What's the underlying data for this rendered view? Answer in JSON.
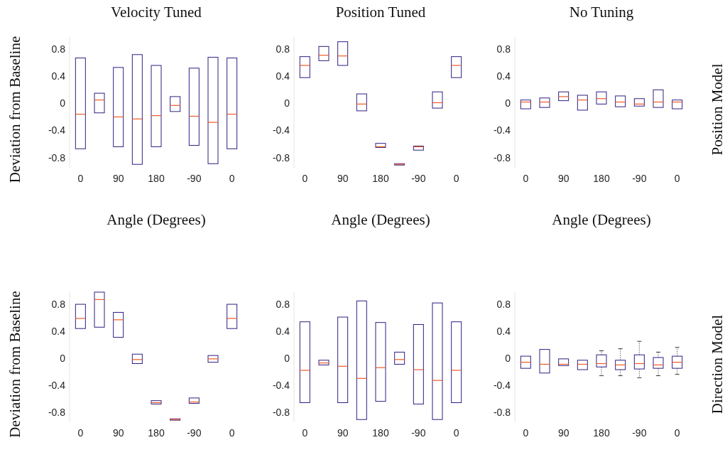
{
  "chart_data": [
    {
      "type": "box",
      "title": "Velocity Tuned",
      "xlabel": "Angle (Degrees)",
      "ylabel": "Deviation from Baseline",
      "categories": [
        "0",
        null,
        "90",
        null,
        "180",
        null,
        "-90",
        null,
        "0"
      ],
      "color": "#2e1f80",
      "ylim": [
        -0.95,
        0.98
      ],
      "yticks": [
        -0.8,
        -0.4,
        0,
        0.4,
        0.8
      ],
      "boxes": [
        {
          "low": -0.67,
          "q1": -0.67,
          "median": -0.16,
          "q3": 0.67,
          "high": 0.67
        },
        {
          "low": -0.14,
          "q1": -0.14,
          "median": 0.05,
          "q3": 0.15,
          "high": 0.15
        },
        {
          "low": -0.64,
          "q1": -0.64,
          "median": -0.2,
          "q3": 0.53,
          "high": 0.53
        },
        {
          "low": -0.9,
          "q1": -0.9,
          "median": -0.23,
          "q3": 0.72,
          "high": 0.72
        },
        {
          "low": -0.64,
          "q1": -0.64,
          "median": -0.18,
          "q3": 0.56,
          "high": 0.56
        },
        {
          "low": -0.12,
          "q1": -0.12,
          "median": -0.03,
          "q3": 0.1,
          "high": 0.1
        },
        {
          "low": -0.62,
          "q1": -0.62,
          "median": -0.19,
          "q3": 0.52,
          "high": 0.52
        },
        {
          "low": -0.89,
          "q1": -0.89,
          "median": -0.28,
          "q3": 0.68,
          "high": 0.68
        },
        {
          "low": -0.67,
          "q1": -0.67,
          "median": -0.16,
          "q3": 0.67,
          "high": 0.67
        }
      ]
    },
    {
      "type": "box",
      "title": "Position Tuned",
      "xlabel": "Angle (Degrees)",
      "categories": [
        "0",
        null,
        "90",
        null,
        "180",
        null,
        "-90",
        null,
        "0"
      ],
      "color": "#2e1f80",
      "ylim": [
        -0.95,
        0.98
      ],
      "yticks": [
        -0.8,
        -0.4,
        0,
        0.4,
        0.8
      ],
      "boxes": [
        {
          "low": 0.38,
          "q1": 0.38,
          "median": 0.56,
          "q3": 0.69,
          "high": 0.69
        },
        {
          "low": 0.63,
          "q1": 0.63,
          "median": 0.71,
          "q3": 0.84,
          "high": 0.84
        },
        {
          "low": 0.56,
          "q1": 0.56,
          "median": 0.7,
          "q3": 0.91,
          "high": 0.91
        },
        {
          "low": -0.11,
          "q1": -0.11,
          "median": -0.01,
          "q3": 0.14,
          "high": 0.14
        },
        {
          "low": -0.65,
          "q1": -0.65,
          "median": -0.64,
          "q3": -0.59,
          "high": -0.59
        },
        {
          "low": -0.91,
          "q1": -0.91,
          "median": -0.9,
          "q3": -0.89,
          "high": -0.89
        },
        {
          "low": -0.69,
          "q1": -0.69,
          "median": -0.64,
          "q3": -0.63,
          "high": -0.63
        },
        {
          "low": -0.07,
          "q1": -0.07,
          "median": 0.01,
          "q3": 0.17,
          "high": 0.17
        },
        {
          "low": 0.38,
          "q1": 0.38,
          "median": 0.56,
          "q3": 0.69,
          "high": 0.69
        }
      ]
    },
    {
      "type": "box",
      "title": "No Tuning",
      "xlabel": "Angle (Degrees)",
      "y2label": "Position Model",
      "categories": [
        "0",
        null,
        "90",
        null,
        "180",
        null,
        "-90",
        null,
        "0"
      ],
      "color": "#2e1f80",
      "ylim": [
        -0.95,
        0.98
      ],
      "yticks": [
        -0.8,
        -0.4,
        0,
        0.4,
        0.8
      ],
      "boxes": [
        {
          "low": -0.08,
          "q1": -0.08,
          "median": 0.02,
          "q3": 0.05,
          "high": 0.05
        },
        {
          "low": -0.06,
          "q1": -0.06,
          "median": 0.02,
          "q3": 0.08,
          "high": 0.08
        },
        {
          "low": 0.04,
          "q1": 0.04,
          "median": 0.1,
          "q3": 0.17,
          "high": 0.17
        },
        {
          "low": -0.1,
          "q1": -0.1,
          "median": 0.05,
          "q3": 0.12,
          "high": 0.12
        },
        {
          "low": -0.01,
          "q1": -0.01,
          "median": 0.07,
          "q3": 0.17,
          "high": 0.17
        },
        {
          "low": -0.05,
          "q1": -0.05,
          "median": 0.02,
          "q3": 0.11,
          "high": 0.11
        },
        {
          "low": -0.04,
          "q1": -0.04,
          "median": -0.01,
          "q3": 0.07,
          "high": 0.07
        },
        {
          "low": -0.06,
          "q1": -0.06,
          "median": 0.02,
          "q3": 0.2,
          "high": 0.2
        },
        {
          "low": -0.08,
          "q1": -0.08,
          "median": 0.02,
          "q3": 0.05,
          "high": 0.05
        }
      ]
    },
    {
      "type": "box",
      "ylabel": "Deviation from Baseline",
      "categories": [
        "0",
        null,
        "90",
        null,
        "180",
        null,
        "-90",
        null,
        "0"
      ],
      "color": "#2e1f80",
      "ylim": [
        -0.95,
        0.98
      ],
      "yticks": [
        -0.8,
        -0.4,
        0,
        0.4,
        0.8
      ],
      "boxes": [
        {
          "low": 0.44,
          "q1": 0.44,
          "median": 0.59,
          "q3": 0.8,
          "high": 0.8
        },
        {
          "low": 0.46,
          "q1": 0.46,
          "median": 0.87,
          "q3": 0.98,
          "high": 0.98
        },
        {
          "low": 0.31,
          "q1": 0.31,
          "median": 0.57,
          "q3": 0.68,
          "high": 0.68
        },
        {
          "low": -0.08,
          "q1": -0.08,
          "median": -0.02,
          "q3": 0.06,
          "high": 0.06
        },
        {
          "low": -0.68,
          "q1": -0.68,
          "median": -0.66,
          "q3": -0.63,
          "high": -0.63
        },
        {
          "low": -0.92,
          "q1": -0.92,
          "median": -0.91,
          "q3": -0.9,
          "high": -0.9
        },
        {
          "low": -0.67,
          "q1": -0.67,
          "median": -0.65,
          "q3": -0.59,
          "high": -0.59
        },
        {
          "low": -0.06,
          "q1": -0.06,
          "median": -0.01,
          "q3": 0.04,
          "high": 0.04
        },
        {
          "low": 0.44,
          "q1": 0.44,
          "median": 0.59,
          "q3": 0.8,
          "high": 0.8
        }
      ]
    },
    {
      "type": "box",
      "categories": [
        "0",
        null,
        "90",
        null,
        "180",
        null,
        "-90",
        null,
        "0"
      ],
      "color": "#2e1f80",
      "ylim": [
        -0.95,
        0.98
      ],
      "yticks": [
        -0.8,
        -0.4,
        0,
        0.4,
        0.8
      ],
      "boxes": [
        {
          "low": -0.66,
          "q1": -0.66,
          "median": -0.18,
          "q3": 0.54,
          "high": 0.54
        },
        {
          "low": -0.1,
          "q1": -0.1,
          "median": -0.07,
          "q3": -0.03,
          "high": -0.03
        },
        {
          "low": -0.66,
          "q1": -0.66,
          "median": -0.12,
          "q3": 0.61,
          "high": 0.61
        },
        {
          "low": -0.91,
          "q1": -0.91,
          "median": -0.3,
          "q3": 0.85,
          "high": 0.85
        },
        {
          "low": -0.64,
          "q1": -0.64,
          "median": -0.14,
          "q3": 0.53,
          "high": 0.53
        },
        {
          "low": -0.09,
          "q1": -0.09,
          "median": -0.02,
          "q3": 0.09,
          "high": 0.09
        },
        {
          "low": -0.68,
          "q1": -0.68,
          "median": -0.17,
          "q3": 0.5,
          "high": 0.5
        },
        {
          "low": -0.91,
          "q1": -0.91,
          "median": -0.33,
          "q3": 0.82,
          "high": 0.82
        },
        {
          "low": -0.66,
          "q1": -0.66,
          "median": -0.18,
          "q3": 0.54,
          "high": 0.54
        }
      ]
    },
    {
      "type": "box",
      "y2label": "Direction Model",
      "categories": [
        "0",
        null,
        "90",
        null,
        "180",
        null,
        "-90",
        null,
        "0"
      ],
      "color": "#2e1f80",
      "ylim": [
        -0.95,
        0.98
      ],
      "yticks": [
        -0.8,
        -0.4,
        0,
        0.4,
        0.8
      ],
      "boxes": [
        {
          "low": -0.15,
          "q1": -0.15,
          "median": -0.06,
          "q3": 0.03,
          "high": 0.03
        },
        {
          "low": -0.22,
          "q1": -0.22,
          "median": -0.09,
          "q3": 0.13,
          "high": 0.13
        },
        {
          "low": -0.11,
          "q1": -0.11,
          "median": -0.09,
          "q3": -0.01,
          "high": -0.01
        },
        {
          "low": -0.17,
          "q1": -0.17,
          "median": -0.09,
          "q3": -0.03,
          "high": -0.03
        },
        {
          "low": -0.26,
          "q1": -0.13,
          "median": -0.08,
          "q3": 0.05,
          "high": 0.11
        },
        {
          "low": -0.26,
          "q1": -0.17,
          "median": -0.1,
          "q3": -0.03,
          "high": 0.14
        },
        {
          "low": -0.29,
          "q1": -0.16,
          "median": -0.08,
          "q3": 0.05,
          "high": 0.25
        },
        {
          "low": -0.26,
          "q1": -0.15,
          "median": -0.1,
          "q3": 0.01,
          "high": 0.09
        },
        {
          "low": -0.24,
          "q1": -0.15,
          "median": -0.06,
          "q3": 0.03,
          "high": 0.16
        }
      ]
    }
  ]
}
